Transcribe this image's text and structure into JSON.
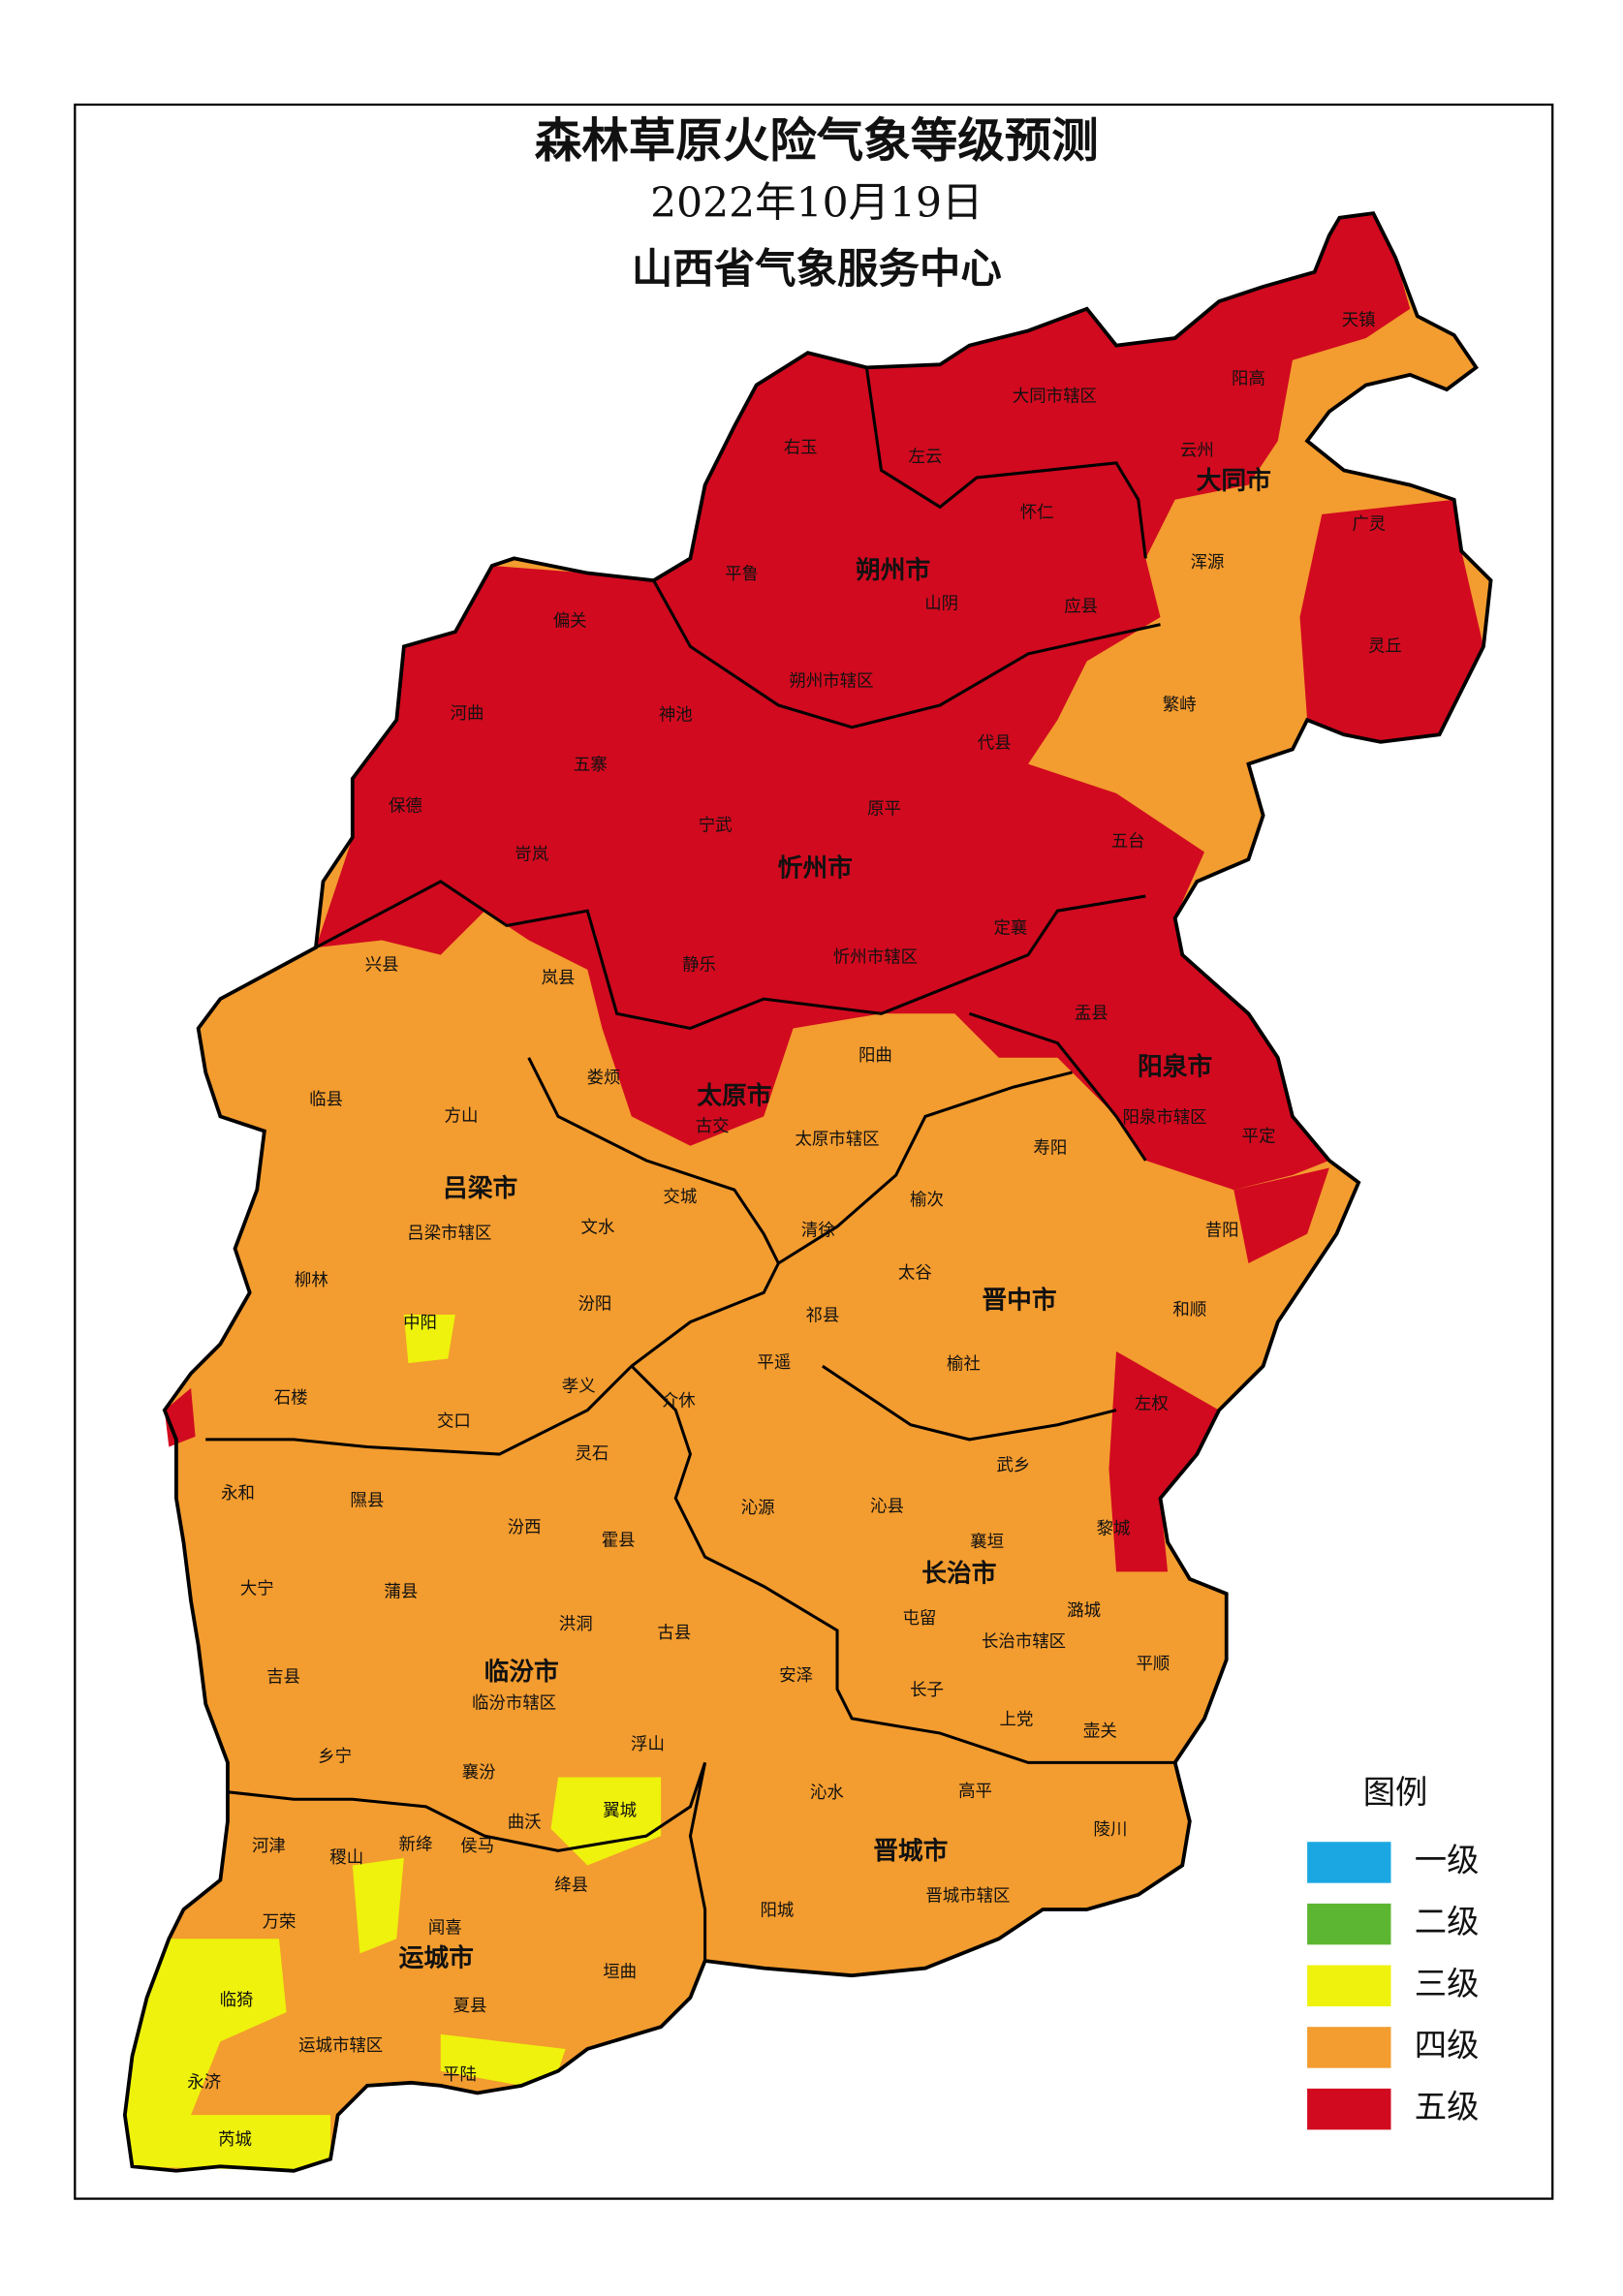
{
  "header": {
    "title": "森林草原火险气象等级预测",
    "date": "2022年10月19日",
    "issuer": "山西省气象服务中心"
  },
  "legend": {
    "title": "图例",
    "items": [
      {
        "label": "一级",
        "color": "#1ba8e2"
      },
      {
        "label": "二级",
        "color": "#5db632"
      },
      {
        "label": "三级",
        "color": "#eef20c"
      },
      {
        "label": "四级",
        "color": "#f39c2f"
      },
      {
        "label": "五级",
        "color": "#d10a1f"
      }
    ]
  },
  "map": {
    "cities": [
      "大同市",
      "朔州市",
      "忻州市",
      "阳泉市",
      "太原市",
      "吕梁市",
      "晋中市",
      "长治市",
      "临汾市",
      "晋城市",
      "运城市"
    ],
    "counties": [
      "天镇",
      "阳高",
      "大同市辖区",
      "左云",
      "右玉",
      "云州",
      "怀仁",
      "广灵",
      "浑源",
      "平鲁",
      "山阴",
      "应县",
      "灵丘",
      "偏关",
      "朔州市辖区",
      "繁峙",
      "河曲",
      "神池",
      "代县",
      "五寨",
      "保德",
      "原平",
      "宁武",
      "五台",
      "岢岚",
      "定襄",
      "静乐",
      "忻州市辖区",
      "兴县",
      "岚县",
      "盂县",
      "阳曲",
      "娄烦",
      "古交",
      "阳泉市辖区",
      "平定",
      "临县",
      "方山",
      "太原市辖区",
      "寿阳",
      "交城",
      "文水",
      "吕梁市辖区",
      "清徐",
      "榆次",
      "昔阳",
      "柳林",
      "太谷",
      "汾阳",
      "祁县",
      "中阳",
      "和顺",
      "平遥",
      "榆社",
      "石楼",
      "孝义",
      "介休",
      "左权",
      "交口",
      "灵石",
      "武乡",
      "永和",
      "隰县",
      "沁源",
      "沁县",
      "黎城",
      "汾西",
      "霍县",
      "襄垣",
      "大宁",
      "蒲县",
      "潞城",
      "屯留",
      "洪洞",
      "古县",
      "长治市辖区",
      "平顺",
      "吉县",
      "安泽",
      "临汾市辖区",
      "长子",
      "上党",
      "壶关",
      "乡宁",
      "浮山",
      "襄汾",
      "沁水",
      "高平",
      "陵川",
      "翼城",
      "曲沃",
      "侯马",
      "河津",
      "稷山",
      "新绛",
      "绛县",
      "阳城",
      "晋城市辖区",
      "万荣",
      "闻喜",
      "垣曲",
      "临猗",
      "夏县",
      "运城市辖区",
      "平陆",
      "永济",
      "芮城"
    ]
  }
}
